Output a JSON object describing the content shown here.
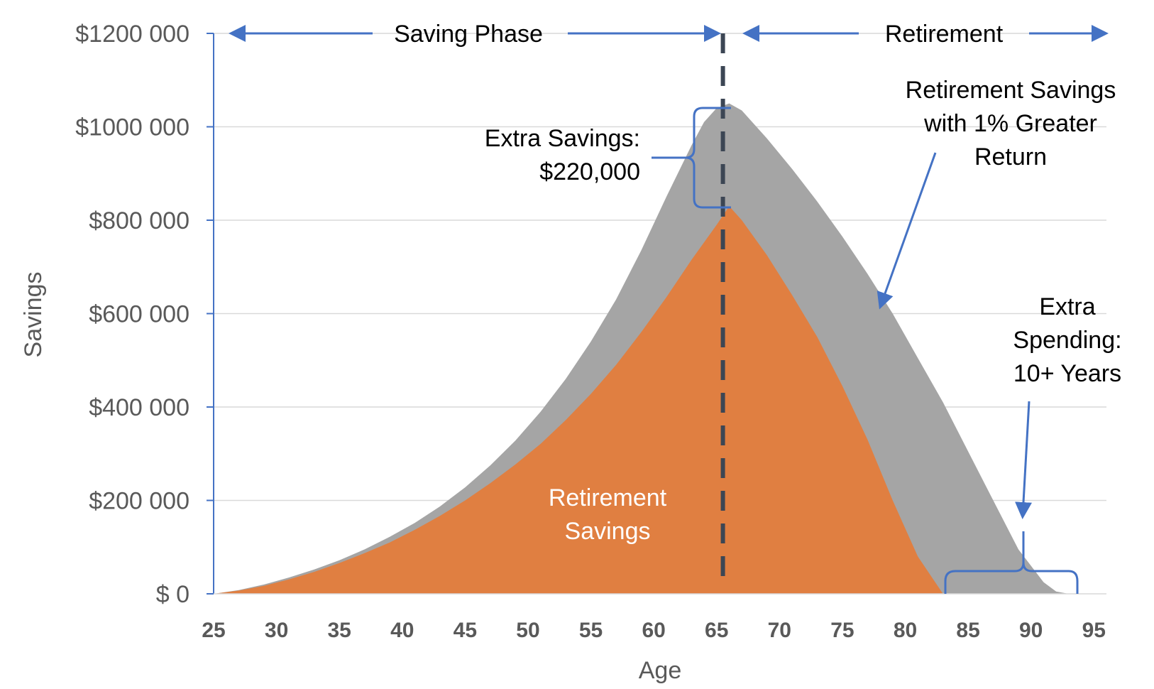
{
  "chart_data": {
    "type": "area",
    "xlabel": "Age",
    "ylabel": "Savings",
    "xlim": [
      25,
      96
    ],
    "ylim": [
      0,
      1200000
    ],
    "x_ticks": [
      "25",
      "30",
      "35",
      "40",
      "45",
      "50",
      "55",
      "60",
      "65",
      "70",
      "75",
      "80",
      "85",
      "90",
      "95"
    ],
    "y_ticks": [
      "$ 0",
      "$200 000",
      "$400 000",
      "$600 000",
      "$800 000",
      "$1000 000",
      "$1200 000"
    ],
    "grid": true,
    "colors": {
      "greater_return": "#a5a5a5",
      "base": "#e07f41",
      "annotation": "#4472c4",
      "divider": "#3c4654"
    },
    "series": [
      {
        "key": "greater_return",
        "x": [
          25,
          27,
          29,
          31,
          33,
          35,
          37,
          39,
          41,
          43,
          45,
          47,
          49,
          51,
          53,
          55,
          57,
          59,
          61,
          63,
          64,
          65,
          66,
          67,
          69,
          71,
          73,
          75,
          77,
          79,
          81,
          83,
          85,
          87,
          89,
          91,
          92,
          93
        ],
        "values": [
          0,
          8000,
          20000,
          35000,
          52000,
          72000,
          95000,
          122000,
          152000,
          187000,
          228000,
          275000,
          328000,
          390000,
          460000,
          540000,
          630000,
          735000,
          850000,
          960000,
          1010000,
          1040000,
          1050000,
          1035000,
          975000,
          910000,
          840000,
          765000,
          685000,
          600000,
          505000,
          410000,
          305000,
          200000,
          95000,
          25000,
          5000,
          0
        ]
      },
      {
        "key": "base",
        "x": [
          25,
          27,
          29,
          31,
          33,
          35,
          37,
          39,
          41,
          43,
          45,
          47,
          49,
          51,
          53,
          55,
          57,
          59,
          61,
          63,
          65,
          66,
          67,
          69,
          71,
          73,
          75,
          77,
          79,
          81,
          83,
          85,
          95
        ],
        "values": [
          0,
          7000,
          17000,
          31000,
          47000,
          66000,
          87000,
          110000,
          137000,
          167000,
          200000,
          237000,
          277000,
          321000,
          372000,
          428000,
          490000,
          560000,
          635000,
          715000,
          790000,
          830000,
          800000,
          725000,
          640000,
          550000,
          445000,
          330000,
          200000,
          80000,
          0,
          0,
          0
        ]
      }
    ],
    "divider_x": 65.5,
    "annotations": {
      "saving_phase": "Saving Phase",
      "retirement": "Retirement",
      "extra_savings_line1": "Extra Savings:",
      "extra_savings_line2": "$220,000",
      "greater_return_line1": "Retirement Savings",
      "greater_return_line2": "with 1% Greater",
      "greater_return_line3": "Return",
      "extra_spending_line1": "Extra",
      "extra_spending_line2": "Spending:",
      "extra_spending_line3": "10+ Years",
      "base_label_line1": "Retirement",
      "base_label_line2": "Savings"
    }
  }
}
